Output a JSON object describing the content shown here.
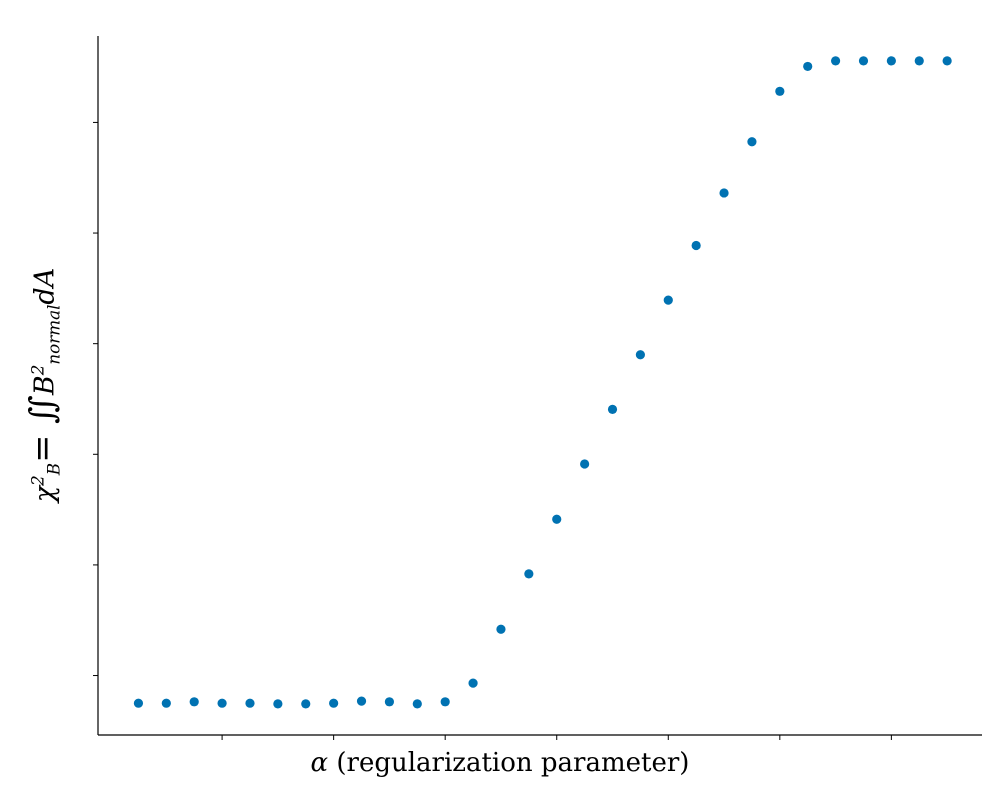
{
  "chart_data": {
    "type": "scatter",
    "title": "",
    "xlabel": {
      "symbol": "α",
      "text": " (regularization parameter)"
    },
    "ylabel": {
      "chi": "χ",
      "sup": "2",
      "sub": "B",
      "eq": "= ∬",
      "b": "B",
      "b_sup": "2",
      "b_sub": "normal",
      "da": "dA"
    },
    "x_ticks": 8,
    "y_ticks": 6,
    "grid": false,
    "legend": "none",
    "series": [
      {
        "color": "#0072b2",
        "x": [
          1,
          2,
          3,
          4,
          5,
          6,
          7,
          8,
          9,
          10,
          11,
          12,
          13,
          14,
          15,
          16,
          17,
          18,
          19,
          20,
          21,
          22,
          23,
          24,
          25,
          26,
          27,
          28,
          29,
          30
        ],
        "y": [
          0.0,
          0.0,
          0.2,
          0.0,
          0.0,
          -0.1,
          -0.1,
          0.0,
          0.3,
          0.2,
          -0.1,
          0.2,
          2.9,
          10.7,
          18.7,
          26.6,
          34.6,
          42.5,
          50.4,
          58.3,
          66.2,
          73.8,
          81.2,
          88.5,
          92.1,
          92.9,
          92.9,
          92.9,
          92.9,
          92.9
        ]
      }
    ],
    "xlim": [
      -0.45,
      31.25
    ],
    "ylim": [
      -4.6,
      96.5
    ]
  }
}
